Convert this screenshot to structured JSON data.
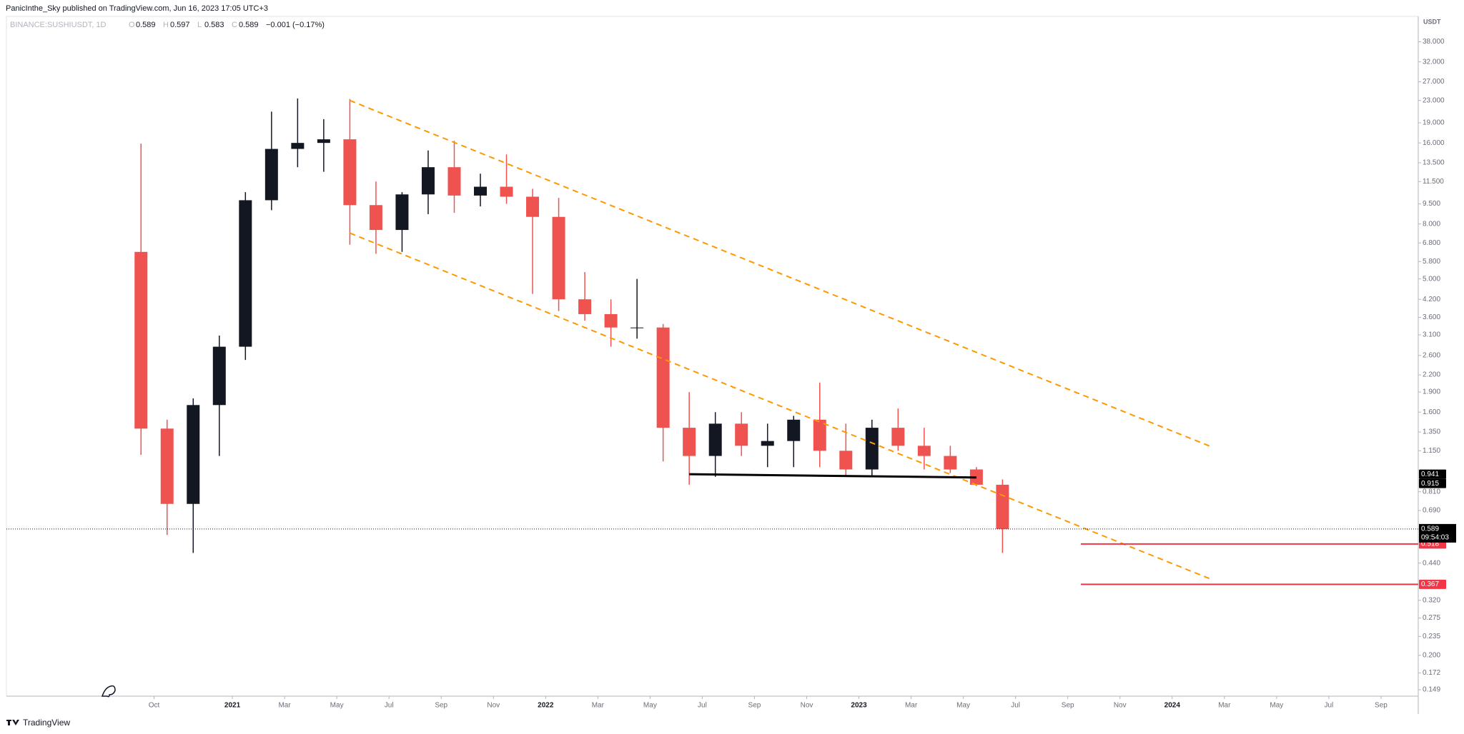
{
  "publisher": "PanicInthe_Sky published on TradingView.com, Jun 16, 2023 17:05 UTC+3",
  "footer": "TradingView",
  "chart_data": {
    "type": "candlestick",
    "symbol": "BINANCE:SUSHIUSDT, 1D",
    "currency": "USDT",
    "header": [
      {
        "label": "O",
        "value": 0.589
      },
      {
        "label": "H",
        "value": 0.597
      },
      {
        "label": "L",
        "value": 0.583
      },
      {
        "label": "C",
        "value": 0.589
      }
    ],
    "change": {
      "value": -0.001,
      "label": "−0.001 (−0.17%)"
    },
    "log_scale": true,
    "grid": false,
    "up_color": "#131722",
    "down_color": "#ef5350",
    "x": [
      "2020-09",
      "2020-10",
      "2020-11",
      "2020-12",
      "2021-01",
      "2021-02",
      "2021-03",
      "2021-04",
      "2021-05",
      "2021-06",
      "2021-07",
      "2021-08",
      "2021-09",
      "2021-10",
      "2021-11",
      "2021-12",
      "2022-01",
      "2022-02",
      "2022-03",
      "2022-04",
      "2022-05",
      "2022-06",
      "2022-07",
      "2022-08",
      "2022-09",
      "2022-10",
      "2022-11",
      "2022-12",
      "2023-01",
      "2023-02",
      "2023-03",
      "2023-04",
      "2023-05",
      "2023-06"
    ],
    "open": [
      6.3,
      1.39,
      0.73,
      1.7,
      2.8,
      9.8,
      15.2,
      16,
      16.5,
      9.4,
      7.6,
      10.3,
      13,
      10.2,
      11,
      10.1,
      8.5,
      4.2,
      3.7,
      3.3,
      3.3,
      1.4,
      1.1,
      1.45,
      1.2,
      1.25,
      1.5,
      1.15,
      0.98,
      1.4,
      1.2,
      1.1,
      0.98,
      0.86
    ],
    "high": [
      15.9,
      1.5,
      1.8,
      3.08,
      10.5,
      20.9,
      23.4,
      19.6,
      23.3,
      11.5,
      10.5,
      15,
      16.3,
      12.3,
      14.5,
      10.8,
      10,
      5.3,
      4.2,
      5.0,
      3.4,
      1.9,
      1.6,
      1.6,
      1.45,
      1.55,
      2.06,
      1.45,
      1.5,
      1.65,
      1.4,
      1.2,
      1.0,
      0.9
    ],
    "low": [
      1.11,
      0.56,
      0.48,
      1.1,
      2.5,
      9.0,
      13,
      12.5,
      6.7,
      6.2,
      6.3,
      8.7,
      8.8,
      9.3,
      9.5,
      4.4,
      3.8,
      3.5,
      2.8,
      3.0,
      1.05,
      0.86,
      0.92,
      1.1,
      1.0,
      1.0,
      1.0,
      0.92,
      0.93,
      1.15,
      0.98,
      0.95,
      0.85,
      0.48
    ],
    "close": [
      1.39,
      0.73,
      1.7,
      2.8,
      9.8,
      15.2,
      16,
      16.5,
      9.4,
      7.6,
      10.3,
      13,
      10.2,
      11,
      10.1,
      8.5,
      4.2,
      3.7,
      3.3,
      3.3,
      1.4,
      1.1,
      1.45,
      1.2,
      1.25,
      1.5,
      1.15,
      0.98,
      1.4,
      1.2,
      1.1,
      0.98,
      0.86,
      0.589
    ],
    "last_price": 0.589,
    "countdown": "09:54:03",
    "ylim": [
      0.141,
      47.2
    ],
    "yticks": [
      {
        "value": 38,
        "label": "38.000"
      },
      {
        "value": 32,
        "label": "32.000"
      },
      {
        "value": 27,
        "label": "27.000"
      },
      {
        "value": 23,
        "label": "23.000"
      },
      {
        "value": 19,
        "label": "19.000"
      },
      {
        "value": 16,
        "label": "16.000"
      },
      {
        "value": 13.5,
        "label": "13.500"
      },
      {
        "value": 11.5,
        "label": "11.500"
      },
      {
        "value": 9.5,
        "label": "9.500"
      },
      {
        "value": 8,
        "label": "8.000"
      },
      {
        "value": 6.8,
        "label": "6.800"
      },
      {
        "value": 5.8,
        "label": "5.800"
      },
      {
        "value": 5,
        "label": "5.000"
      },
      {
        "value": 4.2,
        "label": "4.200"
      },
      {
        "value": 3.6,
        "label": "3.600"
      },
      {
        "value": 3.1,
        "label": "3.100"
      },
      {
        "value": 2.6,
        "label": "2.600"
      },
      {
        "value": 2.2,
        "label": "2.200"
      },
      {
        "value": 1.9,
        "label": "1.900"
      },
      {
        "value": 1.6,
        "label": "1.600"
      },
      {
        "value": 1.35,
        "label": "1.350"
      },
      {
        "value": 1.15,
        "label": "1.150"
      },
      {
        "value": 0.81,
        "label": "0.810"
      },
      {
        "value": 0.69,
        "label": "0.690"
      },
      {
        "value": 0.44,
        "label": "0.440"
      },
      {
        "value": 0.32,
        "label": "0.320"
      },
      0.275,
      0.235,
      {
        "value": 0.2,
        "label": "0.200"
      },
      0.172,
      0.149
    ],
    "xticks": [
      {
        "value": "2020-10",
        "label": "Oct"
      },
      {
        "value": "2021-01",
        "label": "2021"
      },
      {
        "value": "2021-03",
        "label": "Mar"
      },
      {
        "value": "2021-05",
        "label": "May"
      },
      {
        "value": "2021-07",
        "label": "Jul"
      },
      {
        "value": "2021-09",
        "label": "Sep"
      },
      {
        "value": "2021-11",
        "label": "Nov"
      },
      {
        "value": "2022-01",
        "label": "2022"
      },
      {
        "value": "2022-03",
        "label": "Mar"
      },
      {
        "value": "2022-05",
        "label": "May"
      },
      {
        "value": "2022-07",
        "label": "Jul"
      },
      {
        "value": "2022-09",
        "label": "Sep"
      },
      {
        "value": "2022-11",
        "label": "Nov"
      },
      {
        "value": "2023-01",
        "label": "2023"
      },
      {
        "value": "2023-03",
        "label": "Mar"
      },
      {
        "value": "2023-05",
        "label": "May"
      },
      {
        "value": "2023-07",
        "label": "Jul"
      },
      {
        "value": "2023-09",
        "label": "Sep"
      },
      {
        "value": "2023-11",
        "label": "Nov"
      },
      {
        "value": "2024-01",
        "label": "2024"
      },
      {
        "value": "2024-03",
        "label": "Mar"
      },
      {
        "value": "2024-05",
        "label": "May"
      },
      {
        "value": "2024-07",
        "label": "Jul"
      },
      {
        "value": "2024-09",
        "label": "Sep"
      }
    ],
    "trend_lines": [
      {
        "x": [
          "2021-05",
          "2024-02"
        ],
        "values": [
          23,
          1.19
        ],
        "color": "#ff9800",
        "dashed": true
      },
      {
        "x": [
          "2021-05",
          "2024-02"
        ],
        "values": [
          7.4,
          0.383
        ],
        "color": "#ff9800",
        "dashed": true
      },
      {
        "x": [
          "2022-06",
          "2023-05"
        ],
        "values": [
          0.941,
          0.915
        ],
        "color": "#000000",
        "dashed": false,
        "price_labels": true
      }
    ],
    "horizontal_lines": [
      {
        "x": "2023-09",
        "value": 0.518,
        "color": "#f23645"
      },
      {
        "x": "2023-09",
        "value": 0.367,
        "color": "#f23645"
      }
    ]
  }
}
